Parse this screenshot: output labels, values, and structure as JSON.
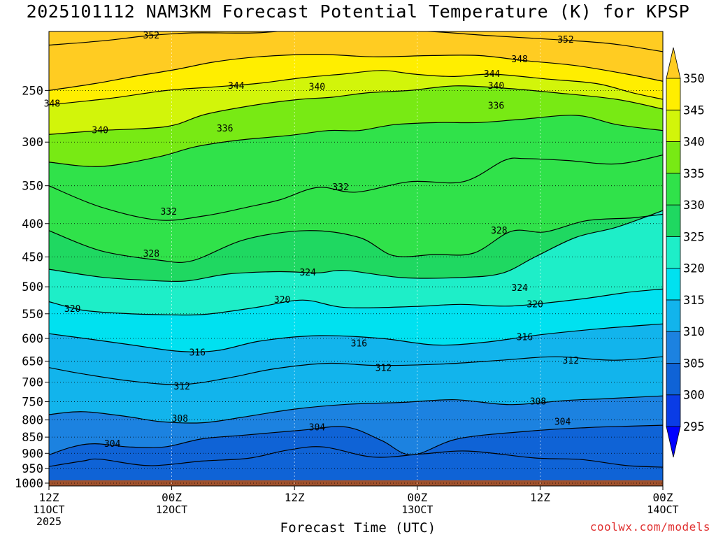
{
  "title": "2025101112 NAM3KM Forecast Potential Temperature (K) for KPSP",
  "credit": "coolwx.com/models",
  "chart_data": {
    "type": "heatmap",
    "title": "2025101112 NAM3KM Forecast Potential Temperature (K) for KPSP",
    "xlabel": "Forecast Time (UTC)",
    "ylabel": "",
    "y_axis": {
      "scale": "log-pressure",
      "range_hpa": [
        1000,
        200
      ],
      "reversed": true,
      "tick_labels": [
        "250",
        "300",
        "350",
        "400",
        "450",
        "500",
        "550",
        "600",
        "650",
        "700",
        "750",
        "800",
        "850",
        "900",
        "950",
        "1000"
      ],
      "tick_values": [
        250,
        300,
        350,
        400,
        450,
        500,
        550,
        600,
        650,
        700,
        750,
        800,
        850,
        900,
        950,
        1000
      ]
    },
    "x_axis": {
      "range_hours": [
        0,
        60
      ],
      "ticks": [
        {
          "hour": 0,
          "lines": [
            "12Z",
            "11OCT",
            "2025"
          ]
        },
        {
          "hour": 12,
          "lines": [
            "00Z",
            "12OCT"
          ]
        },
        {
          "hour": 24,
          "lines": [
            "12Z"
          ]
        },
        {
          "hour": 36,
          "lines": [
            "00Z",
            "13OCT"
          ]
        },
        {
          "hour": 48,
          "lines": [
            "12Z"
          ]
        },
        {
          "hour": 60,
          "lines": [
            "00Z",
            "14OCT"
          ]
        }
      ]
    },
    "grid": true,
    "colorbar": {
      "labels": [
        "295",
        "300",
        "305",
        "310",
        "315",
        "320",
        "325",
        "330",
        "335",
        "340",
        "345",
        "350"
      ],
      "bounds": [
        295,
        300,
        305,
        310,
        315,
        320,
        325,
        330,
        335,
        340,
        345,
        350
      ],
      "colors": [
        "#0000ff",
        "#0a3ce6",
        "#0f63d6",
        "#1c82e0",
        "#12b4ec",
        "#00e1f0",
        "#1eeec8",
        "#1fd861",
        "#30e24a",
        "#78ea14",
        "#d2f50a",
        "#ffee00",
        "#ffcc22"
      ],
      "extend": "both"
    },
    "surface_pressure_hpa": 990,
    "surface_color": "#a0522d",
    "contour_interval": 2,
    "contours": [
      {
        "theta": 302,
        "hours": [
          0,
          3.3,
          5,
          9.8,
          15,
          19.5,
          23.3,
          26.8,
          31.7,
          36.5,
          41,
          47.5,
          52,
          56.5,
          60
        ],
        "hpa": [
          943,
          925,
          919,
          940,
          925,
          916,
          890,
          880,
          912,
          902,
          893,
          915,
          920,
          940,
          945
        ]
      },
      {
        "theta": 304,
        "hours": [
          0,
          2.3,
          4.5,
          7.8,
          11.3,
          15,
          18.8,
          24.5,
          29,
          32.5,
          35.5,
          40,
          47,
          52.5,
          56.5,
          60
        ],
        "hpa": [
          905,
          880,
          870,
          880,
          880,
          855,
          845,
          830,
          820,
          860,
          905,
          855,
          832,
          822,
          818,
          815
        ]
      },
      {
        "theta": 308,
        "hours": [
          0,
          3.3,
          7.5,
          11,
          15,
          19,
          24,
          29.2,
          34.5,
          39.7,
          45,
          50.5,
          54.5,
          60
        ],
        "hpa": [
          785,
          777,
          790,
          805,
          808,
          792,
          770,
          757,
          752,
          745,
          758,
          747,
          742,
          735
        ]
      },
      {
        "theta": 312,
        "hours": [
          0,
          3.3,
          8.2,
          13,
          17.5,
          22,
          27.2,
          32,
          38.2,
          44.2,
          49.5,
          55.2,
          60
        ],
        "hpa": [
          665,
          680,
          698,
          706,
          690,
          668,
          655,
          660,
          657,
          648,
          640,
          648,
          640
        ]
      },
      {
        "theta": 316,
        "hours": [
          0,
          3.5,
          7.5,
          12.8,
          16.5,
          20.8,
          26.5,
          32.5,
          37.8,
          42.7,
          47.7,
          53.7,
          60
        ],
        "hpa": [
          590,
          600,
          612,
          628,
          626,
          605,
          594,
          600,
          614,
          608,
          593,
          580,
          570
        ]
      },
      {
        "theta": 320,
        "hours": [
          0,
          3.3,
          7,
          11.7,
          15.3,
          20.2,
          24.8,
          29,
          35.7,
          40.2,
          45.3,
          52,
          56.5,
          60
        ],
        "hpa": [
          527,
          543,
          549,
          552,
          551,
          538,
          524,
          538,
          536,
          532,
          535,
          522,
          510,
          504
        ]
      },
      {
        "theta": 324,
        "hours": [
          0,
          5,
          9,
          13.3,
          17.5,
          22.5,
          26.3,
          29,
          34.5,
          40,
          44.2,
          47.5,
          51.5,
          55.5,
          60
        ],
        "hpa": [
          470,
          483,
          488,
          490,
          478,
          474,
          476,
          472,
          484,
          484,
          477,
          450,
          420,
          405,
          382
        ]
      },
      {
        "theta": 328,
        "hours": [
          0,
          5,
          10.7,
          14,
          19.2,
          25.2,
          30.3,
          33.7,
          37.7,
          41.5,
          45.2,
          48.5,
          52.5,
          57,
          60
        ],
        "hpa": [
          410,
          440,
          455,
          456,
          423,
          410,
          420,
          448,
          446,
          444,
          411,
          412,
          396,
          392,
          387
        ]
      },
      {
        "theta": 332,
        "hours": [
          0,
          5,
          10.7,
          15.3,
          19.2,
          22.5,
          26.3,
          30,
          35.3,
          40.5,
          44.5,
          46.5,
          50.5,
          55.5,
          60
        ],
        "hpa": [
          350,
          377,
          395,
          389,
          378,
          368,
          352,
          358,
          345,
          345,
          320,
          318,
          320,
          324,
          314
        ]
      },
      {
        "theta": 336,
        "hours": [
          0,
          5,
          10.7,
          14.3,
          18.5,
          23.5,
          27.3,
          30.3,
          33.8,
          38,
          42,
          46,
          51.5,
          55.5,
          60
        ],
        "hpa": [
          322,
          327,
          316,
          305,
          298,
          293,
          288,
          288,
          282,
          280,
          280,
          277,
          273,
          282,
          288
        ]
      },
      {
        "theta": 340,
        "hours": [
          0,
          5,
          11.5,
          15.3,
          20.3,
          24.5,
          27.7,
          31.2,
          35.2,
          39.7,
          44.5,
          49.5,
          55.5,
          60
        ],
        "hpa": [
          292,
          288,
          284,
          272,
          263,
          258,
          256,
          252,
          250,
          246,
          248,
          252,
          258,
          267
        ]
      },
      {
        "theta": 344,
        "hours": [
          0,
          6,
          11.5,
          16,
          20.3,
          24.8,
          28.7,
          32.5,
          35.7,
          39.5,
          43.3,
          48.5,
          53.5,
          57,
          60
        ],
        "hpa": [
          263,
          257,
          250,
          247,
          244,
          239,
          236,
          233,
          236,
          238,
          236,
          240,
          244,
          252,
          258
        ]
      },
      {
        "theta": 348,
        "hours": [
          0,
          4.5,
          8.3,
          12.5,
          16.2,
          20.5,
          26.2,
          31.7,
          37.5,
          42,
          46.5,
          51.5,
          56.5,
          60
        ],
        "hpa": [
          250,
          244,
          238,
          232,
          226,
          222,
          220,
          222,
          221,
          221,
          225,
          229,
          236,
          242
        ]
      },
      {
        "theta": 352,
        "hours": [
          0,
          5,
          9.8,
          14,
          20.2,
          26,
          31.5,
          37.2,
          43,
          49.7,
          55,
          60
        ],
        "hpa": [
          213,
          210,
          206,
          204,
          204,
          201,
          202,
          203,
          206,
          209,
          212,
          218
        ]
      }
    ],
    "contour_labels": [
      {
        "text": "352",
        "hour": 10,
        "hpa": 206
      },
      {
        "text": "352",
        "hour": 50.5,
        "hpa": 209
      },
      {
        "text": "348",
        "hour": 0.3,
        "hpa": 262
      },
      {
        "text": "348",
        "hour": 46,
        "hpa": 224
      },
      {
        "text": "344",
        "hour": 18.3,
        "hpa": 246
      },
      {
        "text": "344",
        "hour": 43.3,
        "hpa": 236
      },
      {
        "text": "340",
        "hour": 5,
        "hpa": 288
      },
      {
        "text": "340",
        "hour": 26.2,
        "hpa": 247
      },
      {
        "text": "340",
        "hour": 43.7,
        "hpa": 246
      },
      {
        "text": "336",
        "hour": 17.2,
        "hpa": 286
      },
      {
        "text": "336",
        "hour": 43.7,
        "hpa": 264
      },
      {
        "text": "332",
        "hour": 11.7,
        "hpa": 384
      },
      {
        "text": "332",
        "hour": 28.5,
        "hpa": 352
      },
      {
        "text": "328",
        "hour": 10,
        "hpa": 445
      },
      {
        "text": "328",
        "hour": 44,
        "hpa": 410
      },
      {
        "text": "324",
        "hour": 25.3,
        "hpa": 476
      },
      {
        "text": "324",
        "hour": 46,
        "hpa": 502
      },
      {
        "text": "320",
        "hour": 2.3,
        "hpa": 541
      },
      {
        "text": "320",
        "hour": 22.8,
        "hpa": 524
      },
      {
        "text": "320",
        "hour": 47.5,
        "hpa": 532
      },
      {
        "text": "316",
        "hour": 14.5,
        "hpa": 631
      },
      {
        "text": "316",
        "hour": 30.3,
        "hpa": 611
      },
      {
        "text": "316",
        "hour": 46.5,
        "hpa": 598
      },
      {
        "text": "312",
        "hour": 13,
        "hpa": 711
      },
      {
        "text": "312",
        "hour": 32.7,
        "hpa": 666
      },
      {
        "text": "312",
        "hour": 51,
        "hpa": 649
      },
      {
        "text": "308",
        "hour": 12.8,
        "hpa": 797
      },
      {
        "text": "308",
        "hour": 47.8,
        "hpa": 750
      },
      {
        "text": "304",
        "hour": 6.2,
        "hpa": 871
      },
      {
        "text": "304",
        "hour": 26.2,
        "hpa": 822
      },
      {
        "text": "304",
        "hour": 50.2,
        "hpa": 806
      }
    ]
  }
}
